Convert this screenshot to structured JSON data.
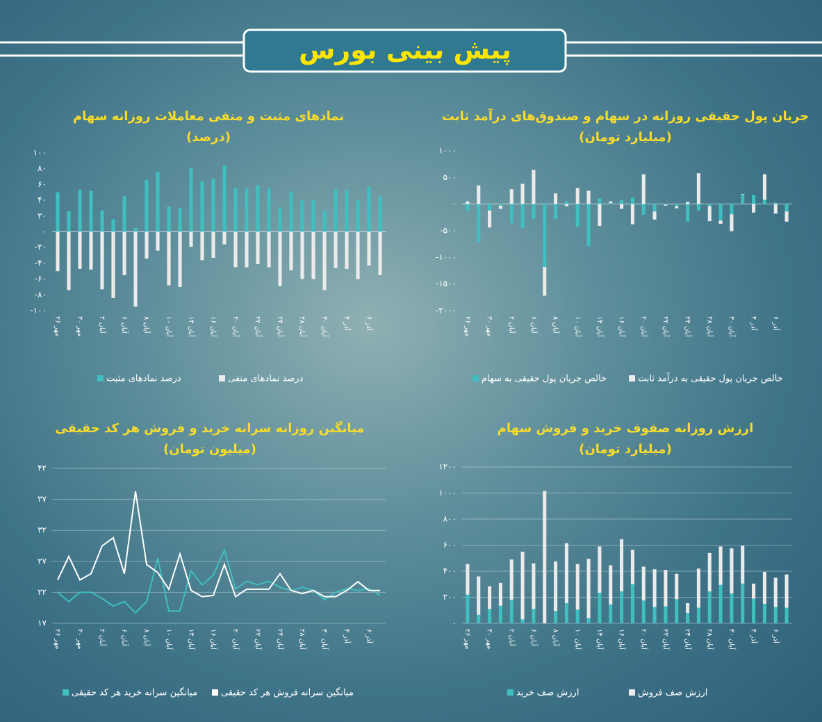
{
  "header": {
    "title": "پیش بینی بورس"
  },
  "chart_data": [
    {
      "type": "bar",
      "stacked": true,
      "title": "نمادهای مثبت و منفی معاملات روزانه سهام",
      "subtitle": "(درصد)",
      "categories": [
        "۲۶ مهر",
        null,
        "۳۰ مهر",
        null,
        "۲ آبان",
        null,
        "۶ آبان",
        null,
        "۸ آبان",
        null,
        "۱۰ آبان",
        null,
        "۱۴ آبان",
        null,
        "۱۶ آبان",
        null,
        "۲۰ آبان",
        null,
        "۲۲ آبان",
        null,
        "۲۴ آبان",
        null,
        "۲۸ آبان",
        null,
        "۳۰ آبان",
        null,
        "۴ آذر",
        null,
        "۶ آذر",
        null
      ],
      "series": [
        {
          "name": "درصد نمادهای مثبت",
          "color": "#3fbfbf",
          "values": [
            50,
            26,
            53,
            52,
            27,
            16,
            45,
            5,
            66,
            76,
            32,
            30,
            81,
            64,
            67,
            84,
            55,
            55,
            59,
            55,
            31,
            51,
            40,
            40,
            26,
            54,
            53,
            40,
            57,
            45
          ]
        },
        {
          "name": "درصد نمادهای منفی",
          "color": "#ebebeb",
          "values": [
            -50,
            -74,
            -47,
            -48,
            -73,
            -84,
            -55,
            -95,
            -34,
            -24,
            -68,
            -70,
            -19,
            -36,
            -33,
            -16,
            -45,
            -45,
            -41,
            -45,
            -69,
            -49,
            -60,
            -60,
            -74,
            -46,
            -47,
            -60,
            -43,
            -55
          ]
        }
      ],
      "ylim": [
        -100,
        100
      ],
      "yticks": [
        {
          "value": -100,
          "label": "-۱۰۰"
        },
        {
          "value": -80,
          "label": "-۸۰"
        },
        {
          "value": -60,
          "label": "-۶۰"
        },
        {
          "value": -40,
          "label": "-۴۰"
        },
        {
          "value": -20,
          "label": "-۲۰"
        },
        {
          "value": 0,
          "label": "۰"
        },
        {
          "value": 20,
          "label": "۲۰"
        },
        {
          "value": 40,
          "label": "۴۰"
        },
        {
          "value": 60,
          "label": "۶۰"
        },
        {
          "value": 80,
          "label": "۸۰"
        },
        {
          "value": 100,
          "label": "۱۰۰"
        }
      ],
      "grid": false
    },
    {
      "type": "bar",
      "stacked": true,
      "title": "جریان پول حقیقی روزانه در سهام و صندوق‌های درآمد ثابت",
      "subtitle": "(میلیارد تومان)",
      "categories": [
        "۲۶ مهر",
        null,
        "۳۰ مهر",
        null,
        "۲ آبان",
        null,
        "۶ آبان",
        null,
        "۸ آبان",
        null,
        "۱۰ آبان",
        null,
        "۱۴ آبان",
        null,
        "۱۶ آبان",
        null,
        "۲۰ آبان",
        null,
        "۲۲ آبان",
        null,
        "۲۴ آبان",
        null,
        "۲۸ آبان",
        null,
        "۳۰ آبان",
        null,
        "۴ آذر",
        null,
        "۶ آذر",
        null
      ],
      "series": [
        {
          "name": "خالص جریان پول حقیقی به سهام",
          "color": "#3fbfbf",
          "values": [
            -130,
            -720,
            -120,
            -30,
            -360,
            -450,
            -280,
            -1180,
            -280,
            60,
            -430,
            -790,
            110,
            20,
            80,
            120,
            -200,
            -140,
            -10,
            -40,
            -330,
            -120,
            -40,
            -310,
            -190,
            180,
            170,
            80,
            30,
            -140
          ]
        },
        {
          "name": "خالص جریان پول حقیقی به درآمد ثابت",
          "color": "#ebebeb",
          "values": [
            50,
            350,
            -320,
            -60,
            280,
            380,
            640,
            -540,
            200,
            -40,
            300,
            250,
            -410,
            30,
            -90,
            -380,
            560,
            -150,
            -20,
            -40,
            40,
            580,
            -280,
            -60,
            -320,
            10,
            -160,
            480,
            -180,
            -190
          ]
        }
      ],
      "ylim": [
        -2000,
        1000
      ],
      "yticks": [
        {
          "value": -2000,
          "label": "-۲۰۰۰"
        },
        {
          "value": -1500,
          "label": "-۱۵۰۰"
        },
        {
          "value": -1000,
          "label": "-۱۰۰۰"
        },
        {
          "value": -500,
          "label": "-۵۰۰"
        },
        {
          "value": 0,
          "label": "۰"
        },
        {
          "value": 500,
          "label": "۵۰۰"
        },
        {
          "value": 1000,
          "label": "۱۰۰۰"
        }
      ],
      "grid": false
    },
    {
      "type": "line",
      "title": "میانگین روزانه سرانه خرید و فروش هر کد حقیقی",
      "subtitle": "(میلیون تومان)",
      "categories": [
        "۲۶ مهر",
        null,
        "۳۰ مهر",
        null,
        "۲ آبان",
        null,
        "۶ آبان",
        null,
        "۸ آبان",
        null,
        "۱۰ آبان",
        null,
        "۱۴ آبان",
        null,
        "۱۶ آبان",
        null,
        "۲۰ آبان",
        null,
        "۲۲ آبان",
        null,
        "۲۴ آبان",
        null,
        "۲۸ آبان",
        null,
        "۳۰ آبان",
        null,
        "۴ آذر",
        null,
        "۶ آذر",
        null
      ],
      "series": [
        {
          "name": "میانگین سرانه خرید هر کد حقیقی",
          "color": "#3fbfbf",
          "values": [
            22,
            20.5,
            22,
            22,
            21,
            19.8,
            20.5,
            18.7,
            20.5,
            27.5,
            19,
            19,
            25.5,
            23.2,
            24.8,
            28.8,
            22.5,
            23.8,
            23.2,
            23.8,
            22.8,
            22.3,
            22.8,
            22.3,
            20.8,
            22,
            22.6,
            22.3,
            22.6,
            21.5
          ]
        },
        {
          "name": "میانگین سرانه فروش هر کد حقیقی",
          "color": "#ffffff",
          "values": [
            24,
            27.8,
            24,
            25,
            29.5,
            30.8,
            25,
            38.3,
            26.5,
            25.2,
            22.5,
            28.2,
            22.3,
            21.3,
            21.5,
            26.5,
            21.3,
            22.5,
            22.5,
            22.5,
            25,
            22.3,
            21.8,
            22.3,
            21.3,
            21.3,
            22.3,
            23.7,
            22.3,
            22.3
          ]
        }
      ],
      "ylim": [
        17,
        42
      ],
      "yticks": [
        {
          "value": 17,
          "label": "۱۷"
        },
        {
          "value": 22,
          "label": "۲۲"
        },
        {
          "value": 27,
          "label": "۲۷"
        },
        {
          "value": 32,
          "label": "۳۲"
        },
        {
          "value": 37,
          "label": "۳۷"
        },
        {
          "value": 42,
          "label": "۴۲"
        }
      ],
      "grid": true
    },
    {
      "type": "bar",
      "stacked": true,
      "title": "ارزش روزانه صفوف خرید و فروش سهام",
      "subtitle": "(میلیارد تومان)",
      "categories": [
        "۲۶ مهر",
        null,
        "۳۰ مهر",
        null,
        "۲ آبان",
        null,
        "۶ آبان",
        null,
        "۸ آبان",
        null,
        "۱۰ آبان",
        null,
        "۱۴ آبان",
        null,
        "۱۶ آبان",
        null,
        "۲۰ آبان",
        null,
        "۲۲ آبان",
        null,
        "۲۴ آبان",
        null,
        "۲۸ آبان",
        null,
        "۳۰ آبان",
        null,
        "۴ آذر",
        null,
        "۶ آذر",
        null
      ],
      "series": [
        {
          "name": "ارزش صف خرید",
          "color": "#3fbfbf",
          "values": [
            220,
            65,
            110,
            135,
            180,
            30,
            110,
            0,
            95,
            155,
            105,
            40,
            235,
            145,
            245,
            300,
            175,
            125,
            130,
            185,
            80,
            120,
            245,
            295,
            230,
            305,
            190,
            150,
            125,
            120
          ]
        },
        {
          "name": "ارزش صف فروش",
          "color": "#ebebeb",
          "values": [
            235,
            295,
            175,
            175,
            310,
            520,
            350,
            1015,
            380,
            460,
            350,
            455,
            355,
            300,
            400,
            265,
            260,
            290,
            280,
            195,
            75,
            300,
            295,
            295,
            345,
            290,
            115,
            245,
            225,
            255
          ]
        }
      ],
      "ylim": [
        0,
        1200
      ],
      "yticks": [
        {
          "value": 0,
          "label": "۰"
        },
        {
          "value": 200,
          "label": "۲۰۰"
        },
        {
          "value": 400,
          "label": "۴۰۰"
        },
        {
          "value": 600,
          "label": "۶۰۰"
        },
        {
          "value": 800,
          "label": "۸۰۰"
        },
        {
          "value": 1000,
          "label": "۱۰۰۰"
        },
        {
          "value": 1200,
          "label": "۱۲۰۰"
        }
      ],
      "grid": true
    }
  ]
}
